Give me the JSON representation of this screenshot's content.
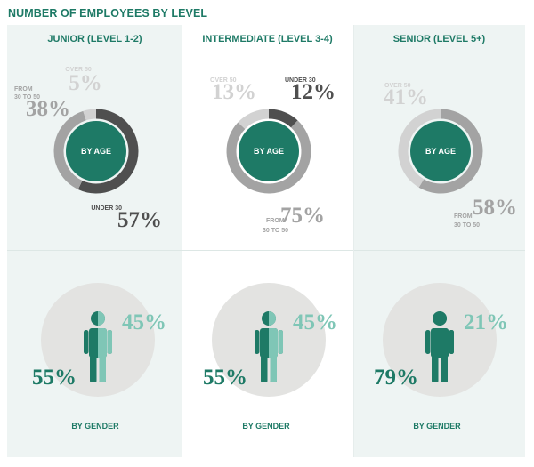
{
  "title": "NUMBER OF EMPLOYEES BY LEVEL",
  "colors": {
    "dark": "#4f4f4f",
    "mid": "#a3a3a3",
    "light": "#d2d2d2",
    "male": "#1e7a66",
    "female": "#7fc6b6",
    "title": "#1e7a66",
    "panel_bg": "#eef4f3",
    "circle_bg": "#e3e3e1"
  },
  "labels": {
    "by_age": "BY AGE",
    "by_gender": "BY GENDER",
    "under_30": "UNDER 30",
    "from_30_50_line1": "FROM",
    "from_30_50_line2": "30 TO 50",
    "from_30_50_one_line": "30 TO 50",
    "over_50": "OVER 50"
  },
  "chart_data": [
    {
      "type": "pie",
      "title": "JUNIOR (LEVEL 1-2)",
      "subtitle": "BY AGE",
      "categories": [
        "UNDER 30",
        "FROM 30 TO 50",
        "OVER 50"
      ],
      "values": [
        57,
        38,
        5
      ],
      "display": [
        "57%",
        "38%",
        "5%"
      ]
    },
    {
      "type": "pie",
      "title": "INTERMEDIATE (LEVEL 3-4)",
      "subtitle": "BY AGE",
      "categories": [
        "UNDER 30",
        "FROM 30 TO 50",
        "OVER 50"
      ],
      "values": [
        12,
        75,
        13
      ],
      "display": [
        "12%",
        "75%",
        "13%"
      ]
    },
    {
      "type": "pie",
      "title": "SENIOR (LEVEL 5+)",
      "subtitle": "BY AGE",
      "categories": [
        "UNDER 30",
        "FROM 30 TO 50",
        "OVER 50"
      ],
      "values": [
        0,
        58,
        41
      ],
      "display": [
        "",
        "58%",
        "41%"
      ]
    },
    {
      "type": "pie",
      "title": "JUNIOR (LEVEL 1-2)",
      "subtitle": "BY GENDER",
      "categories": [
        "male",
        "female"
      ],
      "values": [
        55,
        45
      ],
      "display": [
        "55%",
        "45%"
      ]
    },
    {
      "type": "pie",
      "title": "INTERMEDIATE (LEVEL 3-4)",
      "subtitle": "BY GENDER",
      "categories": [
        "male",
        "female"
      ],
      "values": [
        55,
        45
      ],
      "display": [
        "55%",
        "45%"
      ]
    },
    {
      "type": "pie",
      "title": "SENIOR (LEVEL 5+)",
      "subtitle": "BY GENDER",
      "categories": [
        "male",
        "female"
      ],
      "values": [
        79,
        21
      ],
      "display": [
        "79%",
        "21%"
      ]
    }
  ]
}
